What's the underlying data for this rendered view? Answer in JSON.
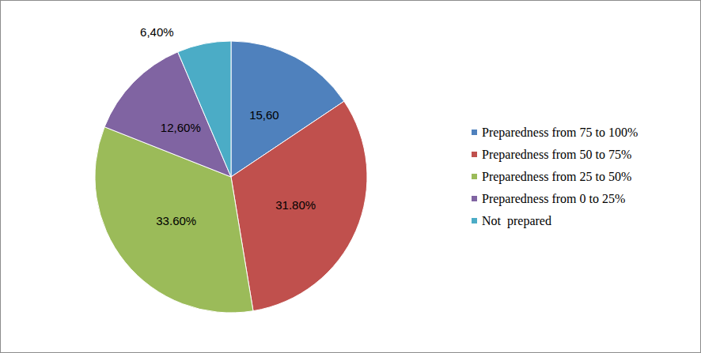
{
  "chart_data": {
    "type": "pie",
    "categories": [
      "Preparedness from 75 to 100%",
      "Preparedness from 50 to 75%",
      "Preparedness from 25 to 50%",
      "Preparedness from 0 to 25%",
      "Not  prepared"
    ],
    "values": [
      15.6,
      31.8,
      33.6,
      12.6,
      6.4
    ],
    "value_labels": [
      "15,60",
      "31.80%",
      "33.60%",
      "12,60%",
      "6,40%"
    ],
    "colors": [
      "#4f81bd",
      "#c0504d",
      "#9bbb59",
      "#8064a2",
      "#4bacc6"
    ],
    "data_labels": true,
    "legend": "right"
  }
}
